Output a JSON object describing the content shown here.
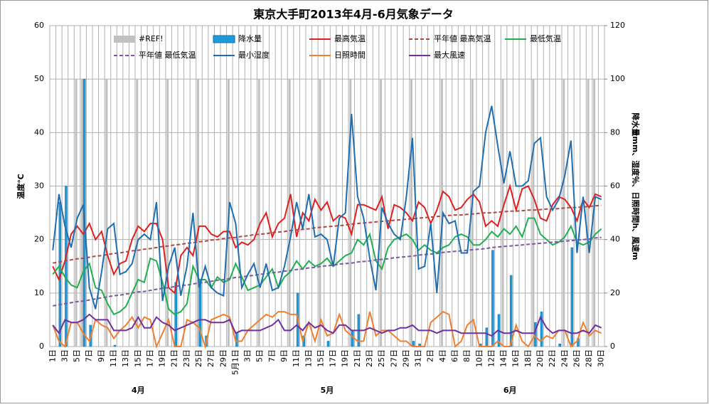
{
  "chart_data": {
    "type": "combo",
    "title": "東京大手町2013年4月-6月気象データ",
    "ylabel": "温度℃",
    "y2label": "降水量mm、湿度％、日照時間h、風速m",
    "categories": [
      "1日",
      null,
      "3日",
      null,
      "5日",
      null,
      "7日",
      null,
      "9日",
      null,
      "11日",
      null,
      "13日",
      null,
      "15日",
      null,
      "17日",
      null,
      "19日",
      null,
      "21日",
      null,
      "23日",
      null,
      "25日",
      null,
      "27日",
      null,
      "29日",
      null,
      "5月1日",
      null,
      "3日",
      null,
      "5日",
      null,
      "7日",
      null,
      "9日",
      null,
      "11日",
      null,
      "13日",
      null,
      "15日",
      null,
      "17日",
      null,
      "19日",
      null,
      "21日",
      null,
      "23日",
      null,
      "25日",
      null,
      "27日",
      null,
      "29日",
      null,
      "31日",
      null,
      "2日",
      null,
      "4日",
      null,
      "6日",
      null,
      "8日",
      null,
      "10日",
      null,
      "12日",
      null,
      "14日",
      null,
      "16日",
      null,
      "18日",
      null,
      "20日",
      null,
      "22日",
      null,
      "24日",
      null,
      "26日",
      null,
      "28日",
      null,
      "30日"
    ],
    "month_labels": [
      "4月",
      "5月",
      "6月"
    ],
    "ylim": [
      0,
      60
    ],
    "yticks": [
      0,
      10,
      20,
      30,
      40,
      50,
      60
    ],
    "y2lim": [
      0,
      120
    ],
    "y2ticks": [
      0,
      20,
      40,
      60,
      80,
      100,
      120
    ],
    "grid": true,
    "series": [
      {
        "name": "#REF!",
        "type": "bar",
        "axis": "y2",
        "color": "#c0c0c0",
        "values": [
          null,
          null,
          null,
          null,
          100,
          100,
          null,
          null,
          null,
          100,
          null,
          null,
          null,
          null,
          100,
          null,
          null,
          null,
          null,
          100,
          null,
          null,
          null,
          null,
          100,
          null,
          null,
          null,
          null,
          100,
          null,
          null,
          null,
          null,
          100,
          null,
          null,
          null,
          null,
          100,
          null,
          null,
          null,
          null,
          100,
          null,
          null,
          null,
          null,
          100,
          null,
          null,
          null,
          null,
          100,
          null,
          null,
          null,
          null,
          100,
          null,
          null,
          null,
          null,
          100,
          null,
          null,
          null,
          null,
          100,
          null,
          null,
          null,
          null,
          100,
          null,
          null,
          null,
          null,
          100,
          null,
          null,
          null,
          null,
          100,
          null,
          null,
          null,
          100,
          100,
          null
        ]
      },
      {
        "name": "降水量",
        "type": "bar",
        "axis": "y2",
        "color": "#1e9ad8",
        "values": [
          0,
          54,
          60,
          0,
          0,
          100,
          8,
          0,
          0,
          0,
          0.5,
          0,
          0,
          0,
          0,
          0,
          0,
          0,
          0,
          0,
          24,
          0,
          0,
          0,
          25,
          4,
          0,
          0,
          0,
          0,
          5,
          0,
          0,
          0,
          0,
          0,
          0,
          0,
          0,
          0,
          20,
          4,
          0,
          0,
          0,
          2,
          0,
          0,
          0,
          6,
          12,
          0,
          0,
          0,
          0,
          0,
          0,
          0,
          0,
          2,
          1,
          0,
          0,
          0,
          0,
          0,
          0,
          0,
          0,
          0,
          1,
          7,
          36,
          12,
          0,
          26.6,
          0,
          0,
          0,
          9,
          13,
          0,
          0,
          1,
          0,
          37,
          3,
          0,
          0,
          0,
          0
        ]
      },
      {
        "name": "最高気温",
        "type": "line",
        "color": "#e02020",
        "values": [
          15,
          12.5,
          16,
          21,
          22.5,
          21,
          23,
          20,
          21.5,
          17,
          13.5,
          15.5,
          16,
          20,
          22.5,
          21.5,
          23,
          23,
          20,
          11,
          10,
          17,
          18.5,
          17,
          22.5,
          22.5,
          21,
          20.5,
          21.5,
          21.5,
          18.5,
          19.5,
          19,
          20,
          23,
          25,
          20.5,
          23,
          24,
          28.5,
          20.5,
          25,
          23.5,
          27.5,
          25.5,
          27,
          23.5,
          24.5,
          24,
          21,
          26.5,
          26.5,
          26,
          25.5,
          28,
          22,
          26.5,
          26,
          25,
          23.5,
          27,
          26,
          23,
          25.5,
          29,
          28,
          25.5,
          26,
          27.5,
          28.5,
          27,
          22.5,
          23.5,
          22.5,
          26.5,
          30,
          25.5,
          29.5,
          30,
          27.5,
          24,
          23.5,
          26.5,
          28,
          27.5,
          26,
          23.5,
          27.5,
          26,
          28.5,
          28
        ]
      },
      {
        "name": "平年値 最高気温",
        "type": "line",
        "dash": true,
        "color": "#b04848",
        "values": [
          15.6,
          15.8,
          16.0,
          16.2,
          16.4,
          16.5,
          16.7,
          16.9,
          17.0,
          17.2,
          17.4,
          17.5,
          17.7,
          17.9,
          18.0,
          18.2,
          18.3,
          18.5,
          18.7,
          18.8,
          19.0,
          19.1,
          19.3,
          19.4,
          19.6,
          19.7,
          19.9,
          20.0,
          20.2,
          20.3,
          20.4,
          20.6,
          20.7,
          20.9,
          21.0,
          21.1,
          21.3,
          21.4,
          21.5,
          21.7,
          21.8,
          21.9,
          22.0,
          22.2,
          22.3,
          22.4,
          22.5,
          22.6,
          22.7,
          22.9,
          23.0,
          23.1,
          23.2,
          23.3,
          23.4,
          23.5,
          23.6,
          23.7,
          23.8,
          23.9,
          24.0,
          24.1,
          24.2,
          24.3,
          24.4,
          24.5,
          24.6,
          24.6,
          24.7,
          24.8,
          24.9,
          25.0,
          25.0,
          25.1,
          25.2,
          25.3,
          25.3,
          25.4,
          25.5,
          25.5,
          25.6,
          25.7,
          25.7,
          25.8,
          25.9,
          26.0,
          26.0,
          26.1,
          26.2,
          26.3,
          26.4
        ]
      },
      {
        "name": "最低気温",
        "type": "line",
        "color": "#20b050",
        "values": [
          13.5,
          15,
          13,
          11.5,
          11,
          14,
          15.5,
          11,
          10.5,
          8,
          6,
          6.5,
          7.5,
          10,
          12.5,
          12,
          16.5,
          16,
          12,
          7,
          6,
          6.5,
          8,
          15,
          12.5,
          12.5,
          11,
          13,
          12,
          12.5,
          15.5,
          13,
          10.5,
          11,
          11.5,
          13,
          14.5,
          11,
          13,
          14,
          16,
          14.5,
          16,
          15,
          15.5,
          16.5,
          15,
          16,
          17,
          17.5,
          20,
          19,
          21,
          16,
          14.5,
          18.5,
          20,
          20.5,
          21,
          20,
          18,
          19,
          18,
          17.5,
          18.5,
          19,
          20.5,
          21,
          20.5,
          19,
          19,
          20,
          21.5,
          20.5,
          22,
          21,
          22.5,
          20.5,
          24,
          24,
          21,
          20,
          19,
          19.5,
          20.5,
          22.5,
          19.5,
          19,
          19.5,
          21,
          22
        ]
      },
      {
        "name": "平年値 最低気温",
        "type": "line",
        "dash": true,
        "color": "#7a5aa0",
        "values": [
          7.6,
          7.8,
          8.0,
          8.2,
          8.4,
          8.5,
          8.7,
          8.9,
          9.1,
          9.3,
          9.5,
          9.6,
          9.8,
          10.0,
          10.2,
          10.3,
          10.5,
          10.7,
          10.9,
          11.0,
          11.2,
          11.4,
          11.5,
          11.7,
          11.9,
          12.0,
          12.2,
          12.4,
          12.5,
          12.7,
          12.9,
          13.0,
          13.2,
          13.3,
          13.5,
          13.6,
          13.8,
          13.9,
          14.1,
          14.2,
          14.4,
          14.5,
          14.7,
          14.8,
          15.0,
          15.1,
          15.2,
          15.4,
          15.5,
          15.6,
          15.8,
          15.9,
          16.0,
          16.2,
          16.3,
          16.4,
          16.6,
          16.7,
          16.8,
          16.9,
          17.1,
          17.2,
          17.3,
          17.4,
          17.6,
          17.7,
          17.8,
          17.9,
          18.0,
          18.1,
          18.2,
          18.3,
          18.5,
          18.6,
          18.7,
          18.8,
          18.9,
          19.0,
          19.1,
          19.2,
          19.3,
          19.4,
          19.5,
          19.6,
          19.7,
          19.8,
          19.9,
          20.0,
          20.1,
          20.3,
          20.4
        ]
      },
      {
        "name": "最小湿度",
        "type": "line",
        "axis": "y2",
        "color": "#1f6fb0",
        "values": [
          36,
          57,
          45,
          37,
          48,
          53,
          22,
          14,
          28,
          44,
          46,
          27,
          28,
          31,
          40,
          42,
          40,
          54,
          17,
          30,
          37,
          19,
          30,
          50,
          22,
          30,
          22,
          20,
          19,
          54,
          46,
          22,
          27,
          31,
          22,
          31,
          21,
          22,
          30,
          41,
          54,
          44,
          57,
          41,
          42,
          40,
          30,
          48,
          50,
          87,
          56,
          48,
          33,
          21,
          52,
          46,
          42,
          40,
          56,
          78,
          29,
          30,
          46,
          20,
          50,
          46,
          47,
          35,
          35,
          58,
          60,
          80,
          90,
          75,
          61,
          73,
          60,
          60,
          62,
          76,
          78,
          56,
          51,
          55,
          64,
          77,
          35,
          56,
          35,
          56,
          55
        ]
      },
      {
        "name": "日照時間",
        "type": "line",
        "axis": "y2",
        "color": "#f08030",
        "values": [
          8,
          2,
          0,
          9,
          9,
          5,
          2,
          10,
          8,
          7,
          3,
          6,
          8,
          11,
          7,
          11,
          10,
          0,
          5,
          10,
          0,
          0,
          10,
          9,
          7,
          0,
          10,
          11,
          12,
          11,
          2,
          2,
          6,
          8,
          10,
          12,
          11,
          13,
          13,
          12,
          12,
          2,
          9,
          2,
          10,
          4,
          5,
          12,
          6,
          4,
          2,
          2,
          13,
          4,
          6,
          6,
          4,
          2,
          2,
          0,
          0,
          0,
          9,
          11,
          13,
          12,
          0,
          2,
          8,
          10,
          0,
          0,
          0,
          2,
          0,
          0,
          8,
          2,
          0,
          4,
          2,
          4,
          3,
          6,
          6,
          0,
          2,
          9,
          4,
          6,
          5
        ]
      },
      {
        "name": "最大風速",
        "type": "line",
        "axis": "y2",
        "color": "#7030a0",
        "values": [
          8,
          5,
          10,
          9,
          9,
          10,
          12,
          10,
          10,
          10,
          6,
          6,
          6,
          7,
          11,
          7,
          7,
          11,
          9,
          8,
          6,
          7,
          8,
          9,
          10,
          10,
          9,
          9,
          9,
          10,
          5,
          6,
          6,
          6,
          6,
          7,
          8,
          10,
          6,
          6,
          8,
          6,
          9,
          7,
          8,
          6,
          5,
          8,
          8,
          6,
          6,
          6,
          7,
          6,
          5,
          6,
          6,
          7,
          7,
          8,
          6,
          6,
          6,
          5,
          6,
          6,
          6,
          5,
          5,
          5,
          5,
          5,
          4,
          6,
          5,
          5,
          6,
          5,
          5,
          5,
          11,
          7,
          5,
          6,
          6,
          5,
          5,
          6,
          5,
          8,
          7
        ]
      }
    ]
  }
}
